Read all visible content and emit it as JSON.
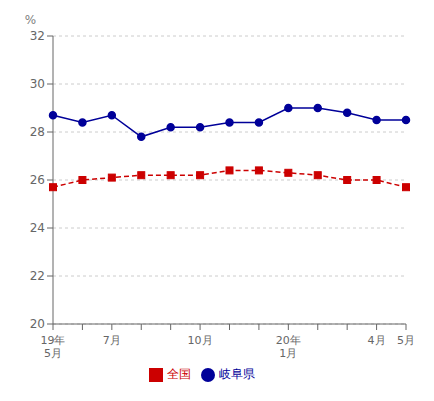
{
  "chart_data": {
    "type": "line",
    "ylabel": "%",
    "categories": [
      "19年\n5月",
      null,
      "7月",
      null,
      null,
      "10月",
      null,
      null,
      "20年\n1月",
      null,
      null,
      "4月",
      "5月"
    ],
    "series": [
      {
        "name": "岐阜県",
        "color": "#000099",
        "marker": "circle",
        "line_style": "solid",
        "values": [
          28.7,
          28.4,
          28.7,
          27.8,
          28.2,
          28.2,
          28.4,
          28.4,
          29.0,
          29.0,
          28.8,
          28.5,
          28.5
        ]
      },
      {
        "name": "全国",
        "color": "#cc0000",
        "marker": "square",
        "line_style": "dashed",
        "values": [
          25.7,
          26.0,
          26.1,
          26.2,
          26.2,
          26.2,
          26.4,
          26.4,
          26.3,
          26.2,
          26.0,
          26.0,
          25.7
        ]
      }
    ],
    "ylim": [
      20,
      32
    ],
    "yticks": [
      20,
      22,
      24,
      26,
      28,
      30,
      32
    ],
    "grid": true,
    "legend": "bottom"
  }
}
